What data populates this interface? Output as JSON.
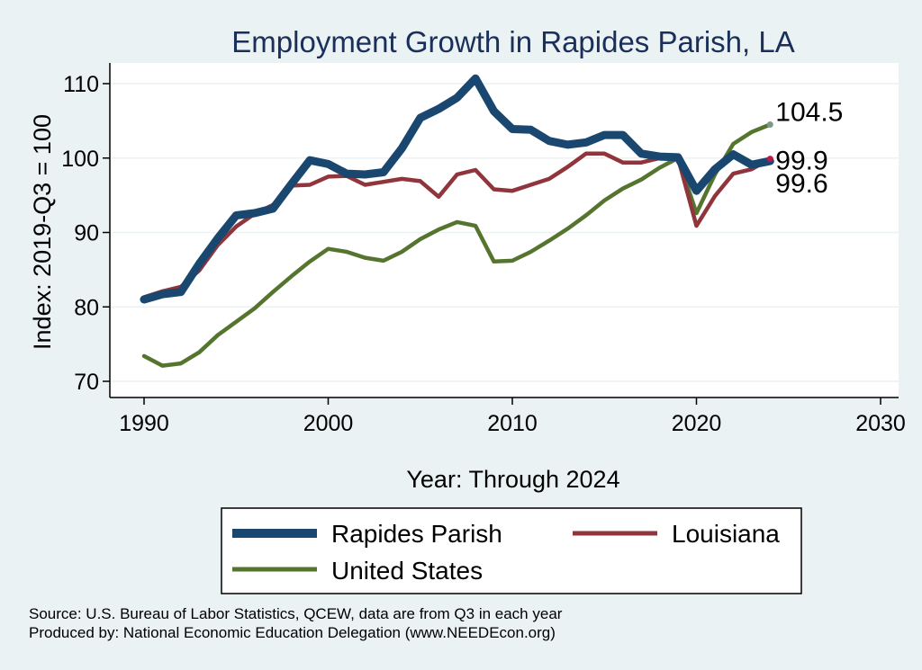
{
  "chart_data": {
    "type": "line",
    "title": "Employment Growth in Rapides Parish, LA",
    "xlabel": "Year: Through 2024",
    "ylabel": "Index: 2019-Q3 = 100",
    "xlim": [
      1990,
      2030
    ],
    "ylim": [
      68,
      112
    ],
    "xticks": [
      1990,
      2000,
      2010,
      2020,
      2030
    ],
    "yticks": [
      70,
      80,
      90,
      100,
      110
    ],
    "grid": "horizontal",
    "legend_position": "bottom",
    "x": [
      1990,
      1991,
      1992,
      1993,
      1994,
      1995,
      1996,
      1997,
      1998,
      1999,
      2000,
      2001,
      2002,
      2003,
      2004,
      2005,
      2006,
      2007,
      2008,
      2009,
      2010,
      2011,
      2012,
      2013,
      2014,
      2015,
      2016,
      2017,
      2018,
      2019,
      2020,
      2021,
      2022,
      2023,
      2024
    ],
    "series": [
      {
        "name": "Rapides Parish",
        "color": "#1a476f",
        "values": [
          81.0,
          81.7,
          82.0,
          85.8,
          89.2,
          92.3,
          92.6,
          93.2,
          96.5,
          99.7,
          99.2,
          97.9,
          97.8,
          98.1,
          101.3,
          105.4,
          106.6,
          108.1,
          110.7,
          106.3,
          103.9,
          103.8,
          102.3,
          101.8,
          102.1,
          103.1,
          103.1,
          100.6,
          100.2,
          100.1,
          95.6,
          98.5,
          100.5,
          99.1,
          99.6
        ]
      },
      {
        "name": "Louisiana",
        "color": "#90353b",
        "values": [
          81.3,
          82.1,
          82.7,
          84.9,
          88.3,
          90.8,
          92.5,
          93.7,
          96.3,
          96.4,
          97.5,
          97.6,
          96.4,
          96.8,
          97.2,
          96.9,
          94.8,
          97.8,
          98.4,
          95.8,
          95.6,
          96.4,
          97.2,
          98.8,
          100.6,
          100.6,
          99.4,
          99.4,
          100.0,
          100.0,
          90.9,
          94.9,
          97.9,
          98.5,
          99.9
        ]
      },
      {
        "name": "United States",
        "color": "#55752f",
        "values": [
          73.4,
          72.1,
          72.4,
          73.9,
          76.2,
          78.0,
          79.8,
          82.0,
          84.1,
          86.1,
          87.8,
          87.4,
          86.6,
          86.2,
          87.4,
          89.1,
          90.4,
          91.4,
          90.9,
          86.1,
          86.2,
          87.4,
          88.9,
          90.5,
          92.3,
          94.3,
          95.9,
          97.1,
          98.7,
          100.0,
          92.6,
          97.8,
          101.9,
          103.5,
          104.5
        ]
      }
    ],
    "end_labels": [
      {
        "series": "United States",
        "text": "104.5"
      },
      {
        "series": "Louisiana",
        "text": "99.9"
      },
      {
        "series": "Rapides Parish",
        "text": "99.6"
      }
    ],
    "tick_labels": {
      "x": [
        "1990",
        "2000",
        "2010",
        "2020",
        "2030"
      ],
      "y": [
        "70",
        "80",
        "90",
        "100",
        "110"
      ]
    }
  },
  "legend": {
    "items": [
      {
        "label": "Rapides Parish",
        "color": "#1a476f"
      },
      {
        "label": "Louisiana",
        "color": "#90353b"
      },
      {
        "label": "United States",
        "color": "#55752f"
      }
    ]
  },
  "footer": {
    "source": "Source: U.S. Bureau of Labor Statistics, QCEW, data are from Q3 in each year",
    "produced": "Produced by: National Economic Education Delegation (www.NEEDEcon.org)"
  }
}
